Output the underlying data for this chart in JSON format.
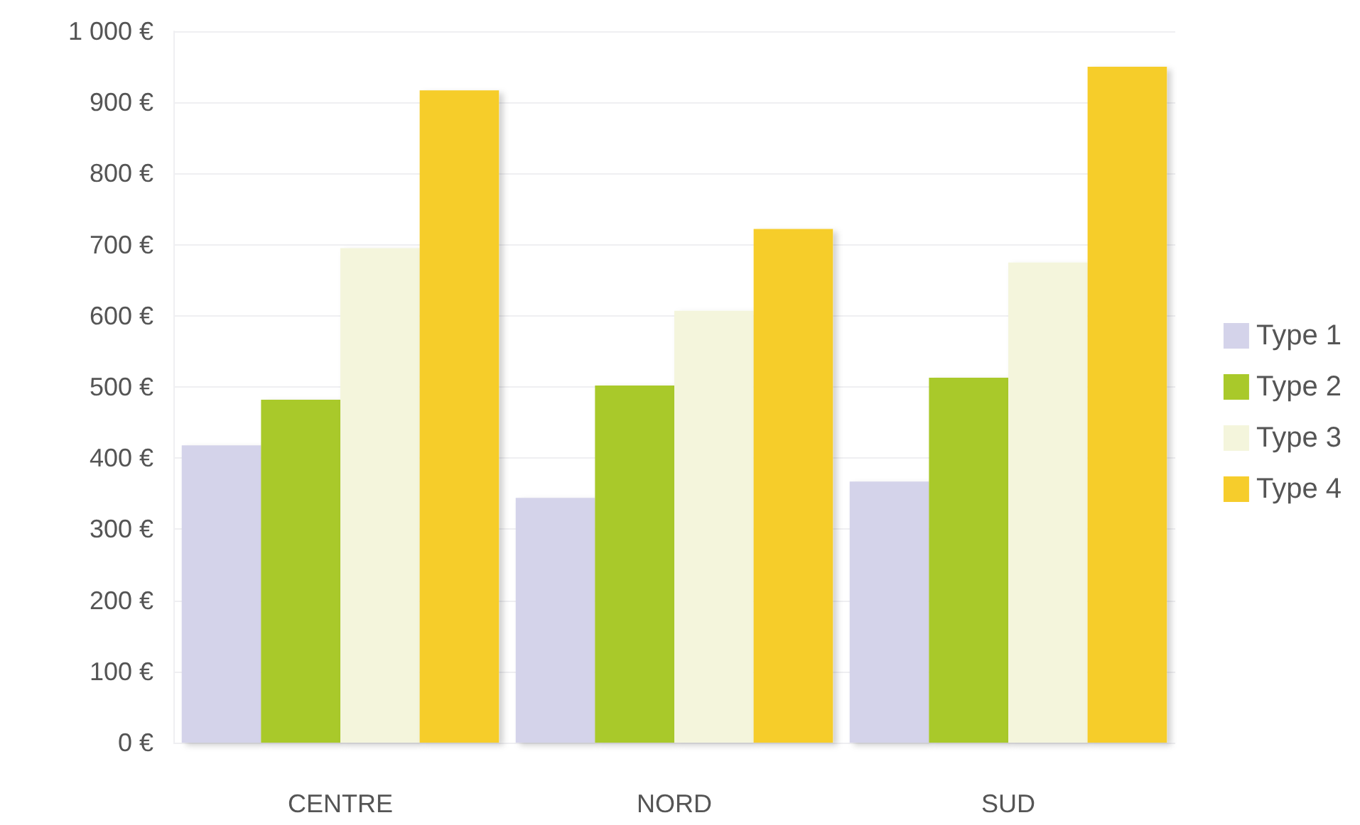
{
  "chart_data": {
    "type": "bar",
    "categories": [
      "CENTRE",
      "NORD",
      "SUD"
    ],
    "series": [
      {
        "name": "Type 1",
        "color": "#d4d3ea",
        "values": [
          418,
          344,
          367
        ]
      },
      {
        "name": "Type 2",
        "color": "#a9c92a",
        "values": [
          482,
          502,
          513
        ]
      },
      {
        "name": "Type 3",
        "color": "#f4f5dc",
        "values": [
          695,
          607,
          675
        ]
      },
      {
        "name": "Type 4",
        "color": "#f6cd2c",
        "values": [
          917,
          722,
          950
        ]
      }
    ],
    "ylim": [
      0,
      1000
    ],
    "yticks": [
      {
        "value": 0,
        "label": "0 €"
      },
      {
        "value": 100,
        "label": "100 €"
      },
      {
        "value": 200,
        "label": "200 €"
      },
      {
        "value": 300,
        "label": "300 €"
      },
      {
        "value": 400,
        "label": "400 €"
      },
      {
        "value": 500,
        "label": "500 €"
      },
      {
        "value": 600,
        "label": "600 €"
      },
      {
        "value": 700,
        "label": "700 €"
      },
      {
        "value": 800,
        "label": "800 €"
      },
      {
        "value": 900,
        "label": "900 €"
      },
      {
        "value": 1000,
        "label": "1 000 €"
      }
    ],
    "grid": "y",
    "legend": "right"
  }
}
